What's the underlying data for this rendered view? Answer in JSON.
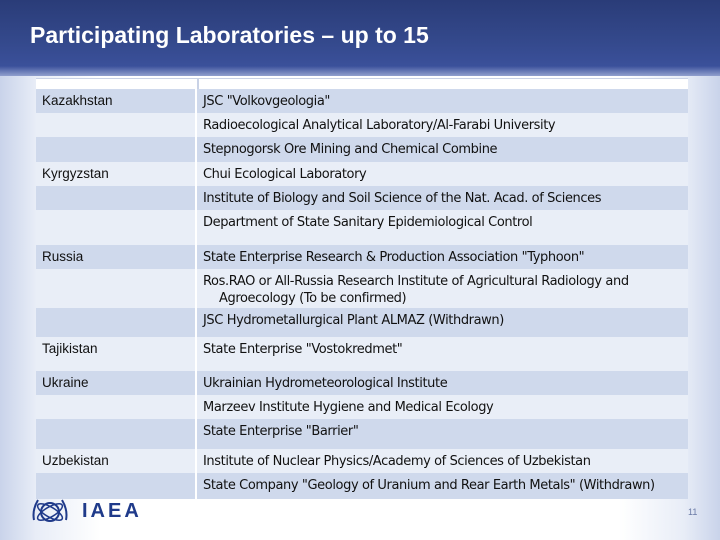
{
  "slide": {
    "title": "Participating Laboratories – up to 15",
    "page_number": "11"
  },
  "table": {
    "rows": [
      {
        "country": "Kazakhstan",
        "lab": "JSC \"Volkovgeologia\""
      },
      {
        "country": "",
        "lab": "Radioecological Analytical Laboratory/Al-Farabi University"
      },
      {
        "country": "",
        "lab": "Stepnogorsk Ore Mining and Chemical Combine"
      },
      {
        "country": "Kyrgyzstan",
        "lab": "Chui Ecological Laboratory"
      },
      {
        "country": "",
        "lab": "Institute of Biology and Soil Science of the Nat. Acad. of Sciences"
      },
      {
        "country": "",
        "lab": "Department of State Sanitary Epidemiological Control"
      },
      {
        "country": "Russia",
        "lab": "State Enterprise Research & Production Association \"Typhoon\""
      },
      {
        "country": "",
        "lab": "Ros.RAO or All-Russia Research Institute of Agricultural Radiology and",
        "lab_line2": "Agroecology (To be confirmed)"
      },
      {
        "country": "",
        "lab": "JSC Hydrometallurgical Plant ALMAZ (Withdrawn)"
      },
      {
        "country": "Tajikistan",
        "lab": "State Enterprise \"Vostokredmet\""
      },
      {
        "country": "Ukraine",
        "lab": "Ukrainian Hydrometeorological Institute"
      },
      {
        "country": "",
        "lab": "Marzeev Institute Hygiene and Medical Ecology"
      },
      {
        "country": "",
        "lab": "State Enterprise \"Barrier\""
      },
      {
        "country": "Uzbekistan",
        "lab": "Institute of Nuclear Physics/Academy of Sciences of Uzbekistan"
      },
      {
        "country": "",
        "lab": "State Company \"Geology of Uranium and Rear Earth Metals\" (Withdrawn)"
      }
    ]
  },
  "logo": {
    "icon": "iaea-emblem-icon",
    "text": "IAEA"
  },
  "colors": {
    "header": "#34498c",
    "row_dark": "#cfd9ec",
    "row_light": "#e9eef7"
  }
}
